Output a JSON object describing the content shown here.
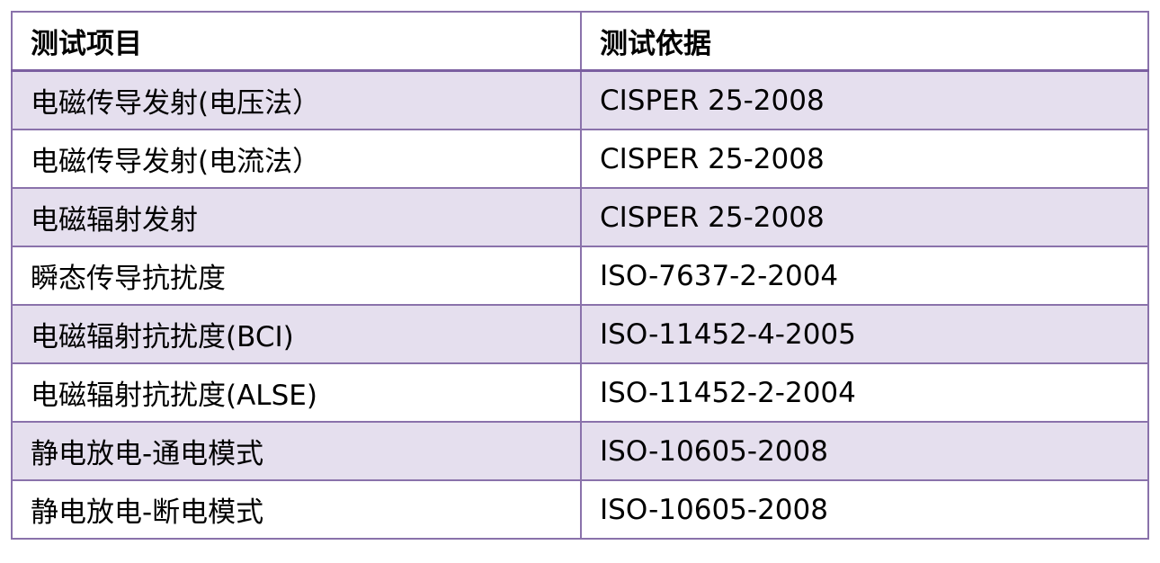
{
  "table": {
    "header": [
      "测试项目",
      "测试依据"
    ],
    "rows": [
      [
        "电磁传导发射(电压法）",
        "CISPER 25-2008"
      ],
      [
        "电磁传导发射(电流法）",
        "CISPER 25-2008"
      ],
      [
        "电磁辐射发射",
        "CISPER 25-2008"
      ],
      [
        "瞬态传导抗扰度",
        "ISO-7637-2-2004"
      ],
      [
        "电磁辐射抗扰度(BCI)",
        "ISO-11452-4-2005"
      ],
      [
        "电磁辐射抗扰度(ALSE)",
        "ISO-11452-2-2004"
      ],
      [
        "静电放电-通电模式",
        "ISO-10605-2008"
      ],
      [
        "静电放电-断电模式",
        "ISO-10605-2008"
      ]
    ]
  }
}
